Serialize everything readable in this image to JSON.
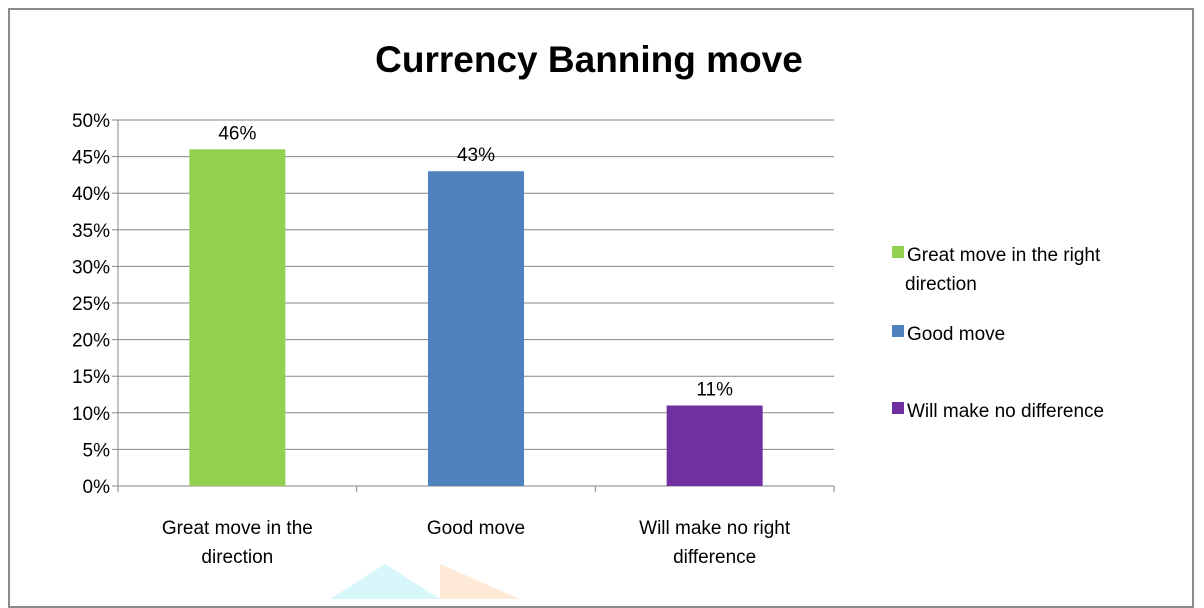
{
  "chart_data": {
    "type": "bar",
    "title": "Currency Banning move",
    "categories": [
      [
        "Great move in the",
        "direction"
      ],
      [
        "Good move"
      ],
      [
        "Will make no right",
        "difference"
      ]
    ],
    "values": [
      46,
      43,
      11
    ],
    "data_labels": [
      "46%",
      "43%",
      "11%"
    ],
    "colors": [
      "#92d050",
      "#4f81bd",
      "#7030a0"
    ],
    "ylim": [
      0,
      50
    ],
    "y_ticks": [
      "0%",
      "5%",
      "10%",
      "15%",
      "20%",
      "25%",
      "30%",
      "35%",
      "40%",
      "45%",
      "50%"
    ],
    "grid": true,
    "legend_position": "right",
    "legend": [
      {
        "label": [
          "Great move in the right",
          "direction"
        ],
        "color": "#92d050"
      },
      {
        "label": [
          "Good move"
        ],
        "color": "#4f81bd"
      },
      {
        "label": [
          "Will make no difference"
        ],
        "color": "#7030a0"
      }
    ]
  }
}
